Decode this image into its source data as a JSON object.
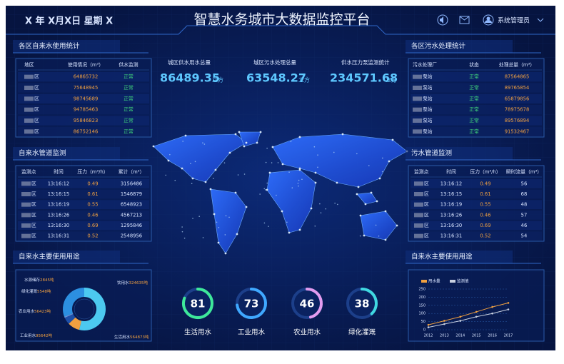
{
  "header": {
    "date": "X 年 X月X日  星期 X",
    "title": "智慧水务城市大数据监控平台",
    "user": "系统管理员"
  },
  "stats": [
    {
      "label": "城区供水用水总量",
      "value": "86489.35",
      "unit": "立方"
    },
    {
      "label": "城区污水处理总量",
      "value": "63548.27",
      "unit": "立方"
    },
    {
      "label": "供水压力泵监测统计",
      "value": "234571.68",
      "unit": "立方"
    }
  ],
  "supply_table": {
    "title": "各区自来水使用统计",
    "columns": [
      "地区",
      "使用情况（m³）",
      "供水监测"
    ],
    "rows": [
      [
        "区",
        "64865732",
        "正常"
      ],
      [
        "区",
        "75648945",
        "正常"
      ],
      [
        "区",
        "98745689",
        "正常"
      ],
      [
        "区",
        "94785463",
        "正常"
      ],
      [
        "区",
        "95846823",
        "正常"
      ],
      [
        "区",
        "86752146",
        "正常"
      ]
    ]
  },
  "sewage_table": {
    "title": "各区污水处理统计",
    "columns": [
      "污水处理厂",
      "状态",
      "处理总量（m³）"
    ],
    "rows": [
      [
        "泵站",
        "正常",
        "87564865"
      ],
      [
        "泵站",
        "正常",
        "89765854"
      ],
      [
        "泵站",
        "正常",
        "65879856"
      ],
      [
        "泵站",
        "正常",
        "78975678"
      ],
      [
        "泵站",
        "正常",
        "89576894"
      ],
      [
        "泵站",
        "正常",
        "91532467"
      ]
    ]
  },
  "supply_pipe": {
    "title": "自来水管道监测",
    "columns": [
      "监测点",
      "时间",
      "压力（m³/h）",
      "累计（m³）"
    ],
    "rows": [
      [
        "区",
        "13:16:12",
        "0.49",
        "3156486"
      ],
      [
        "区",
        "13:16:15",
        "0.61",
        "1546879"
      ],
      [
        "区",
        "13:16:19",
        "0.55",
        "6548923"
      ],
      [
        "区",
        "13:16:26",
        "0.46",
        "4567213"
      ],
      [
        "区",
        "13:16:30",
        "0.69",
        "1295846"
      ],
      [
        "区",
        "13:16:31",
        "0.52",
        "2548956"
      ]
    ]
  },
  "sewage_pipe": {
    "title": "污水管道监测",
    "columns": [
      "监测点",
      "时间",
      "压力（m³/h）",
      "瞬时流量（m³）"
    ],
    "rows": [
      [
        "区",
        "13:16:12",
        "0.49",
        "56"
      ],
      [
        "区",
        "13:16:15",
        "0.61",
        "68"
      ],
      [
        "区",
        "13:16:19",
        "0.55",
        "48"
      ],
      [
        "区",
        "13:16:26",
        "0.46",
        "57"
      ],
      [
        "区",
        "13:16:30",
        "0.69",
        "46"
      ],
      [
        "区",
        "13:16:31",
        "0.52",
        "54"
      ]
    ]
  },
  "usage_donut": {
    "title": "自来水主要使用用途",
    "items": [
      {
        "name": "生活用水",
        "value": 564873,
        "value_label": "564873吨",
        "color": "#4cc9f0"
      },
      {
        "name": "工业用水",
        "value": 95642,
        "value_label": "95642吨",
        "color": "#f0a040"
      },
      {
        "name": "农业用水",
        "value": 56423,
        "value_label": "56423吨",
        "color": "#1d4fa8"
      },
      {
        "name": "绿化灌溉",
        "value": 5548,
        "value_label": "5548吨",
        "color": "#6f8fe0"
      },
      {
        "name": "水源储存",
        "value": 2845,
        "value_label": "2845吨",
        "color": "#9cc4f0"
      },
      {
        "name": "饮用水",
        "value": 324635,
        "value_label": "324635吨",
        "color": "#2c8fe0"
      }
    ]
  },
  "usage_chart": {
    "title": "自来水主要使用用途",
    "type": "line",
    "categories": [
      "2012",
      "2013",
      "2014",
      "2015",
      "2016",
      "2017"
    ],
    "series": [
      {
        "name": "用水量",
        "color": "#f0a040",
        "values": [
          30,
          55,
          80,
          110,
          140,
          165
        ]
      },
      {
        "name": "监测值",
        "color": "#c8d0e0",
        "values": [
          15,
          35,
          55,
          80,
          100,
          125
        ]
      }
    ],
    "ylim": [
      0,
      250
    ],
    "yticks": [
      0,
      50,
      100,
      150,
      200,
      250
    ],
    "grid": true
  },
  "gauges": [
    {
      "value": 81,
      "label": "生活用水",
      "color": "#3ee89a"
    },
    {
      "value": 73,
      "label": "工业用水",
      "color": "#3fa8ff"
    },
    {
      "value": 46,
      "label": "农业用水",
      "color": "#e39cf0"
    },
    {
      "value": 38,
      "label": "绿化灌溉",
      "color": "#40d8e0"
    }
  ]
}
